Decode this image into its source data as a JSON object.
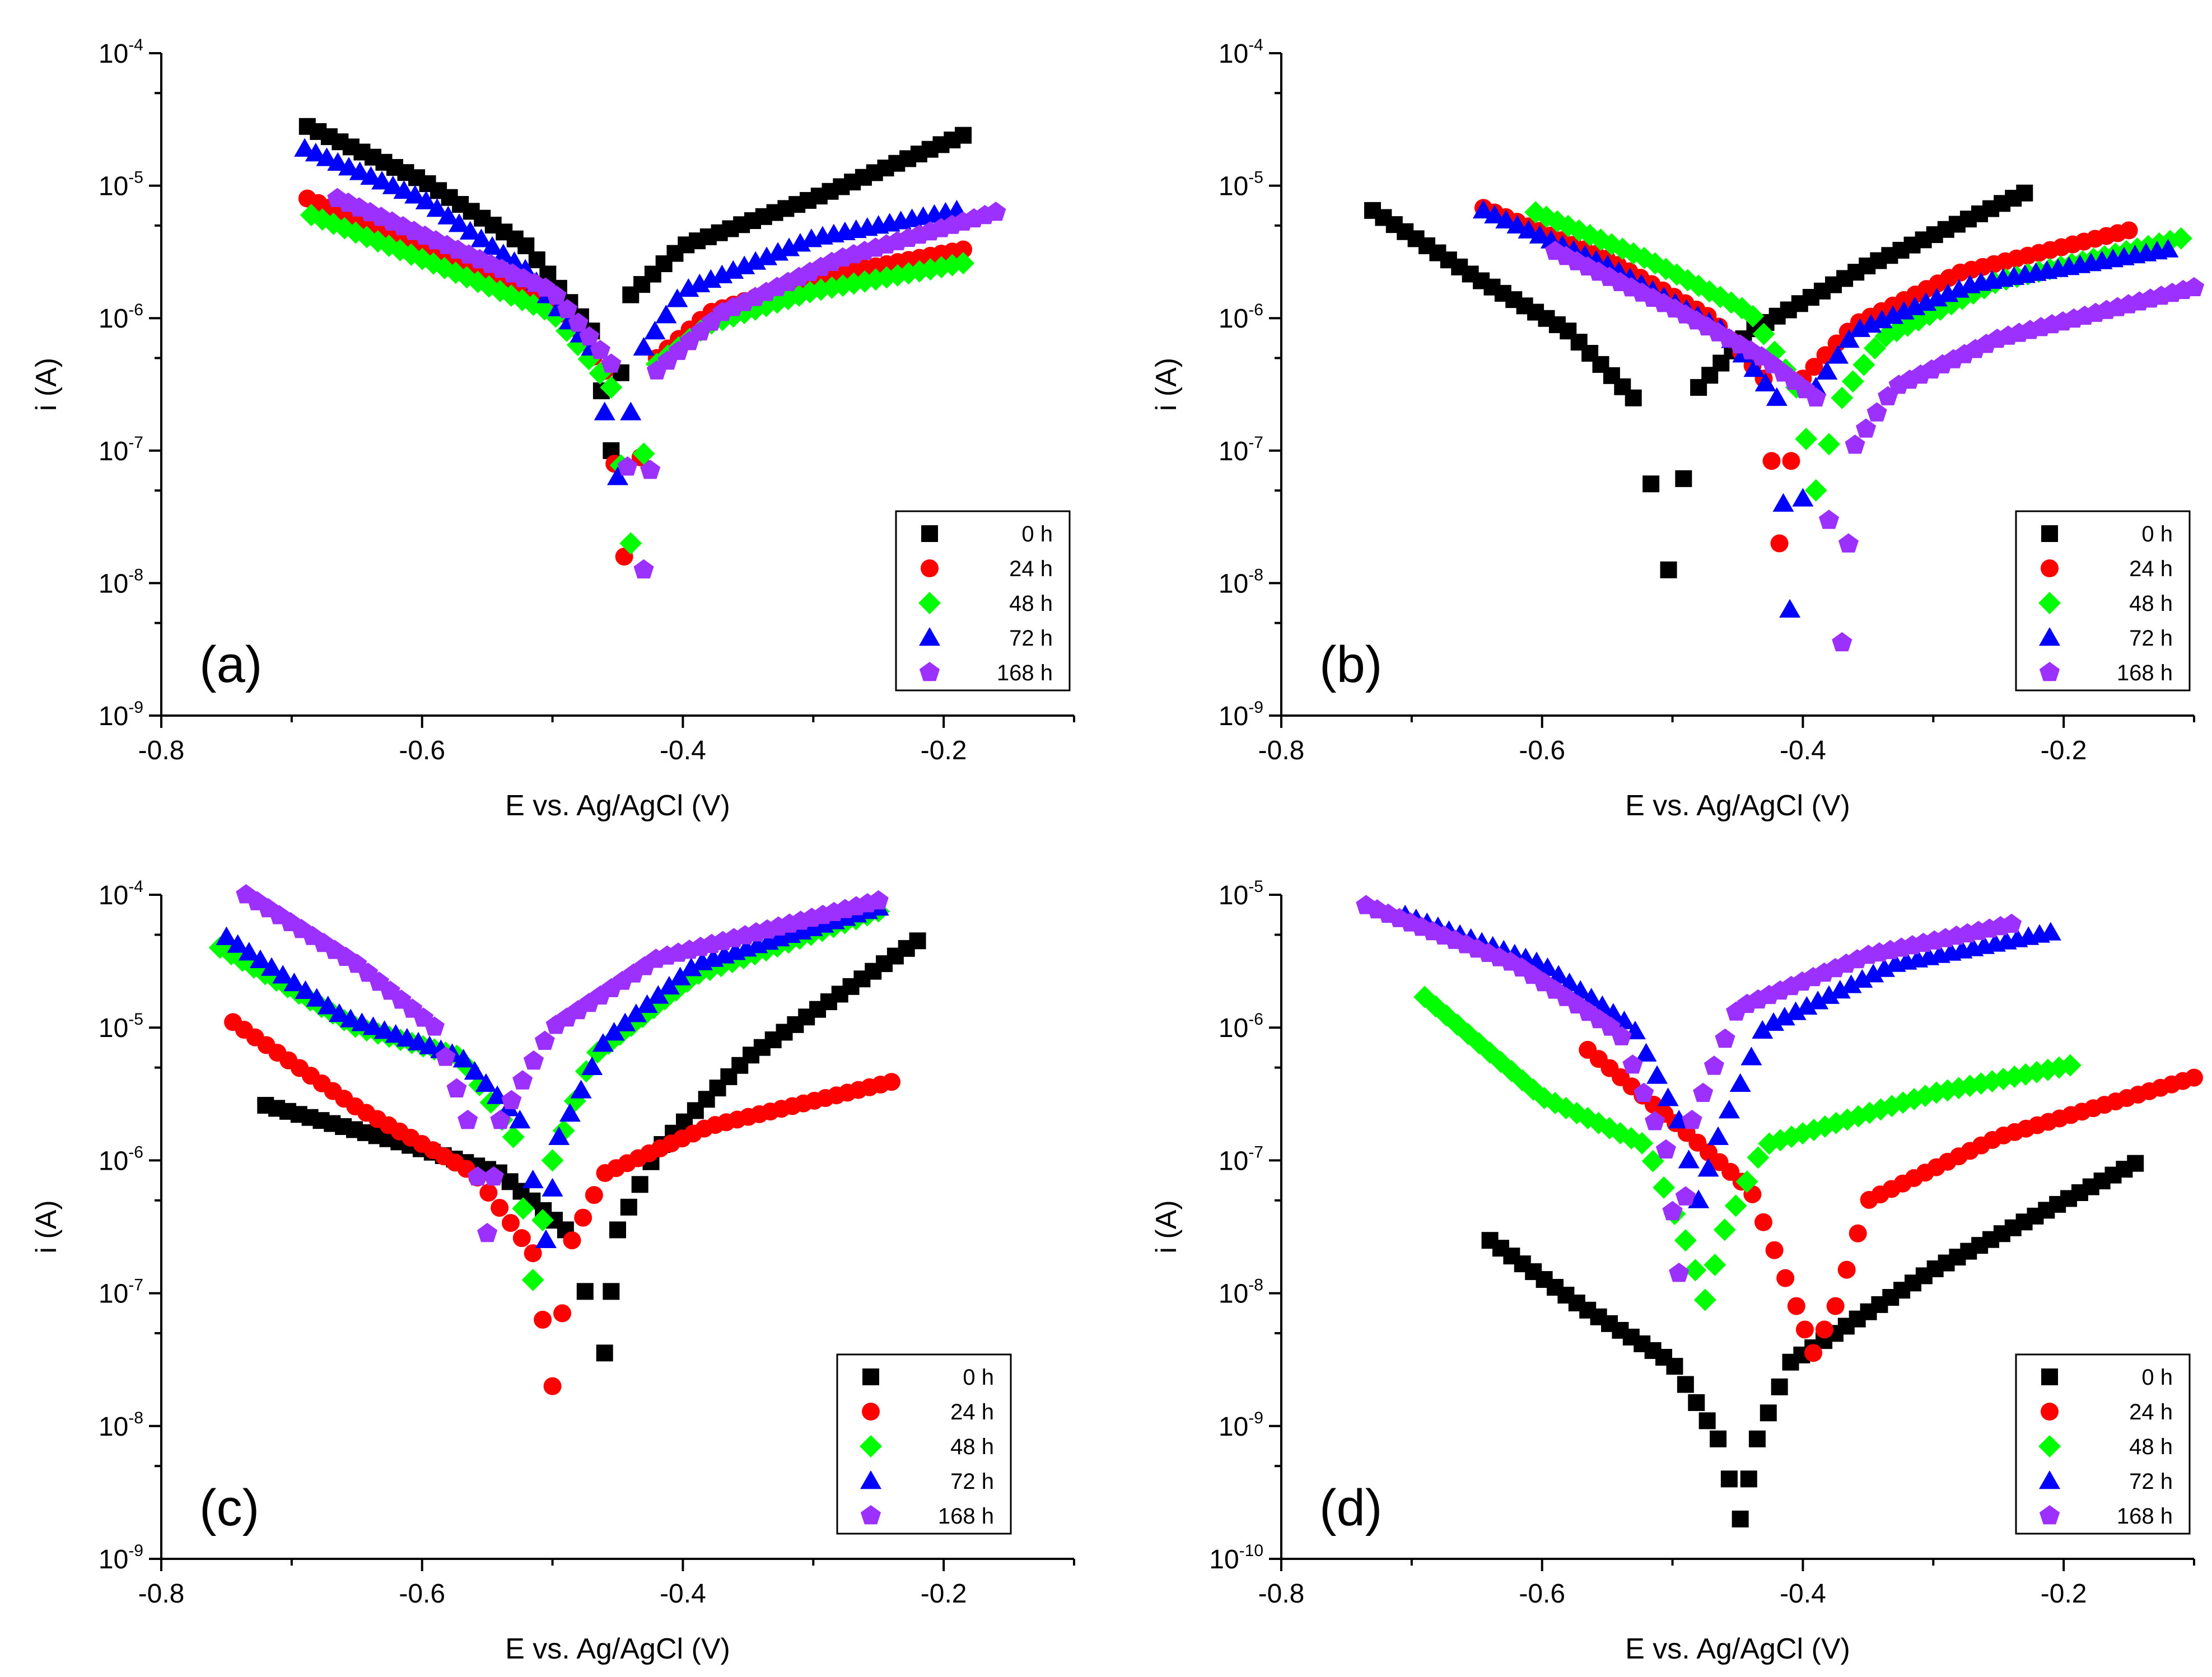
{
  "colors": {
    "0 h": "#000000",
    "24 h": "#ff0000",
    "48 h": "#00ff00",
    "72 h": "#0000ff",
    "168 h": "#9b30ff"
  },
  "chart_data": [
    {
      "type": "scatter",
      "panel_label": "(a)",
      "xlabel": "E vs. Ag/AgCl (V)",
      "ylabel": "i (A)",
      "xscale": "linear",
      "yscale": "log",
      "xlim": [
        -0.8,
        -0.1
      ],
      "ylim_exp": [
        -9,
        -4
      ],
      "xticks": [
        "-0.8",
        "-0.6",
        "-0.4",
        "-0.2"
      ],
      "legend_position": "bottom-right",
      "series": [
        {
          "name": "0 h",
          "marker": "square",
          "ecorr": -0.455,
          "imin_exp": -7.0,
          "left": [
            [
              -0.688,
              2.8e-05
            ],
            [
              -0.6,
              1.1e-05
            ],
            [
              -0.52,
              3.5e-06
            ],
            [
              -0.47,
              8e-07
            ]
          ],
          "right": [
            [
              -0.44,
              1.5e-06
            ],
            [
              -0.4,
              3.5e-06
            ],
            [
              -0.3,
              8e-06
            ],
            [
              -0.185,
              2.4e-05
            ]
          ]
        },
        {
          "name": "24 h",
          "marker": "circle",
          "ecorr": -0.445,
          "imin_exp": -7.8,
          "left": [
            [
              -0.688,
              8e-06
            ],
            [
              -0.6,
              3.5e-06
            ],
            [
              -0.5,
              1.3e-06
            ],
            [
              -0.46,
              4e-07
            ]
          ],
          "right": [
            [
              -0.42,
              5e-07
            ],
            [
              -0.38,
              1.1e-06
            ],
            [
              -0.3,
              2e-06
            ],
            [
              -0.185,
              3.3e-06
            ]
          ]
        },
        {
          "name": "48 h",
          "marker": "diamond",
          "ecorr": -0.44,
          "imin_exp": -7.7,
          "left": [
            [
              -0.685,
              6e-06
            ],
            [
              -0.6,
              2.8e-06
            ],
            [
              -0.5,
              1.1e-06
            ],
            [
              -0.455,
              3e-07
            ]
          ],
          "right": [
            [
              -0.42,
              4.5e-07
            ],
            [
              -0.38,
              9e-07
            ],
            [
              -0.3,
              1.6e-06
            ],
            [
              -0.185,
              2.6e-06
            ]
          ]
        },
        {
          "name": "72 h",
          "marker": "triangle",
          "ecorr": -0.45,
          "imin_exp": -7.2,
          "left": [
            [
              -0.69,
              1.9e-05
            ],
            [
              -0.6,
              8e-06
            ],
            [
              -0.52,
              2.3e-06
            ],
            [
              -0.47,
              6e-07
            ]
          ],
          "right": [
            [
              -0.43,
              6e-07
            ],
            [
              -0.4,
              1.6e-06
            ],
            [
              -0.3,
              4e-06
            ],
            [
              -0.19,
              6.5e-06
            ]
          ]
        },
        {
          "name": "168 h",
          "marker": "pentagon",
          "ecorr": -0.43,
          "imin_exp": -7.9,
          "left": [
            [
              -0.665,
              8e-06
            ],
            [
              -0.58,
              3.5e-06
            ],
            [
              -0.5,
              1.6e-06
            ],
            [
              -0.455,
              4.5e-07
            ]
          ],
          "right": [
            [
              -0.42,
              4e-07
            ],
            [
              -0.37,
              1.1e-06
            ],
            [
              -0.28,
              2.8e-06
            ],
            [
              -0.16,
              6.3e-06
            ]
          ]
        }
      ]
    },
    {
      "type": "scatter",
      "panel_label": "(b)",
      "xlabel": "E vs. Ag/AgCl (V)",
      "ylabel": "i (A)",
      "xscale": "linear",
      "yscale": "log",
      "xlim": [
        -0.8,
        -0.1
      ],
      "ylim_exp": [
        -9,
        -4
      ],
      "xticks": [
        "-0.8",
        "-0.6",
        "-0.4",
        "-0.2"
      ],
      "legend_position": "bottom-right",
      "series": [
        {
          "name": "0 h",
          "marker": "square",
          "ecorr": -0.503,
          "imin_exp": -7.9,
          "left": [
            [
              -0.73,
              6.5e-06
            ],
            [
              -0.65,
              2e-06
            ],
            [
              -0.58,
              8e-07
            ],
            [
              -0.53,
              2.5e-07
            ]
          ],
          "right": [
            [
              -0.48,
              3e-07
            ],
            [
              -0.44,
              8e-07
            ],
            [
              -0.35,
              2.5e-06
            ],
            [
              -0.23,
              8.8e-06
            ]
          ]
        },
        {
          "name": "24 h",
          "marker": "circle",
          "ecorr": -0.418,
          "imin_exp": -7.7,
          "left": [
            [
              -0.645,
              6.8e-06
            ],
            [
              -0.55,
              2.8e-06
            ],
            [
              -0.47,
              1e-06
            ],
            [
              -0.43,
              3.5e-07
            ]
          ],
          "right": [
            [
              -0.4,
              3.5e-07
            ],
            [
              -0.36,
              9e-07
            ],
            [
              -0.28,
              2.2e-06
            ],
            [
              -0.15,
              4.6e-06
            ]
          ]
        },
        {
          "name": "48 h",
          "marker": "diamond",
          "ecorr": -0.39,
          "imin_exp": -7.3,
          "left": [
            [
              -0.605,
              6.3e-06
            ],
            [
              -0.52,
              2.8e-06
            ],
            [
              -0.44,
              1.1e-06
            ],
            [
              -0.405,
              3e-07
            ]
          ],
          "right": [
            [
              -0.37,
              2.5e-07
            ],
            [
              -0.34,
              7e-07
            ],
            [
              -0.25,
              1.9e-06
            ],
            [
              -0.11,
              4e-06
            ]
          ]
        },
        {
          "name": "72 h",
          "marker": "triangle",
          "ecorr": -0.41,
          "imin_exp": -8.2,
          "left": [
            [
              -0.645,
              6.5e-06
            ],
            [
              -0.55,
              2.5e-06
            ],
            [
              -0.46,
              8e-07
            ],
            [
              -0.42,
              2.5e-07
            ]
          ],
          "right": [
            [
              -0.39,
              3e-07
            ],
            [
              -0.36,
              8e-07
            ],
            [
              -0.27,
              1.8e-06
            ],
            [
              -0.12,
              3.3e-06
            ]
          ]
        },
        {
          "name": "168 h",
          "marker": "pentagon",
          "ecorr": -0.37,
          "imin_exp": -8.45,
          "left": [
            [
              -0.59,
              3.2e-06
            ],
            [
              -0.5,
              1.2e-06
            ],
            [
              -0.43,
              5e-07
            ],
            [
              -0.39,
              2.5e-07
            ]
          ],
          "right": [
            [
              -0.36,
              1.1e-07
            ],
            [
              -0.33,
              3e-07
            ],
            [
              -0.25,
              7e-07
            ],
            [
              -0.1,
              1.7e-06
            ]
          ]
        }
      ]
    },
    {
      "type": "scatter",
      "panel_label": "(c)",
      "xlabel": "E vs. Ag/AgCl (V)",
      "ylabel": "i (A)",
      "xscale": "linear",
      "yscale": "log",
      "xlim": [
        -0.8,
        -0.1
      ],
      "ylim_exp": [
        -9,
        -4
      ],
      "xticks": [
        "-0.8",
        "-0.6",
        "-0.4",
        "-0.2"
      ],
      "legend_position": "bottom-right",
      "series": [
        {
          "name": "0 h",
          "marker": "square",
          "ecorr": -0.46,
          "imin_exp": -7.45,
          "left": [
            [
              -0.72,
              2.6e-06
            ],
            [
              -0.62,
              1.4e-06
            ],
            [
              -0.54,
              8e-07
            ],
            [
              -0.49,
              3e-07
            ]
          ],
          "right": [
            [
              -0.45,
              3e-07
            ],
            [
              -0.42,
              1.2e-06
            ],
            [
              -0.35,
              6e-06
            ],
            [
              -0.22,
              4.5e-05
            ]
          ]
        },
        {
          "name": "24 h",
          "marker": "circle",
          "ecorr": -0.5,
          "imin_exp": -7.7,
          "left": [
            [
              -0.745,
              1.1e-05
            ],
            [
              -0.65,
              2.5e-06
            ],
            [
              -0.56,
              8e-07
            ],
            [
              -0.515,
              2e-07
            ]
          ],
          "right": [
            [
              -0.485,
              2.5e-07
            ],
            [
              -0.46,
              8e-07
            ],
            [
              -0.38,
              1.8e-06
            ],
            [
              -0.24,
              3.9e-06
            ]
          ]
        },
        {
          "name": "48 h",
          "marker": "diamond",
          "ecorr": -0.515,
          "imin_exp": -6.9,
          "left": [
            [
              -0.755,
              4e-05
            ],
            [
              -0.65,
              1e-05
            ],
            [
              -0.57,
              6e-06
            ],
            [
              -0.53,
              1.5e-06
            ]
          ],
          "right": [
            [
              -0.5,
              1e-06
            ],
            [
              -0.47,
              6e-06
            ],
            [
              -0.39,
              2.5e-05
            ],
            [
              -0.25,
              7.5e-05
            ]
          ]
        },
        {
          "name": "72 h",
          "marker": "triangle",
          "ecorr": -0.505,
          "imin_exp": -6.6,
          "left": [
            [
              -0.75,
              4.8e-05
            ],
            [
              -0.66,
              1.2e-05
            ],
            [
              -0.57,
              6e-06
            ],
            [
              -0.525,
              2e-06
            ]
          ],
          "right": [
            [
              -0.495,
              1.5e-06
            ],
            [
              -0.46,
              8e-06
            ],
            [
              -0.39,
              3e-05
            ],
            [
              -0.25,
              8e-05
            ]
          ]
        },
        {
          "name": "168 h",
          "marker": "pentagon",
          "ecorr": -0.55,
          "imin_exp": -6.55,
          "left": [
            [
              -0.735,
              0.0001
            ],
            [
              -0.65,
              3e-05
            ],
            [
              -0.59,
              1e-05
            ],
            [
              -0.565,
              2e-06
            ]
          ],
          "right": [
            [
              -0.54,
              2e-06
            ],
            [
              -0.5,
              1e-05
            ],
            [
              -0.42,
              3.3e-05
            ],
            [
              -0.25,
              9e-05
            ]
          ]
        }
      ]
    },
    {
      "type": "scatter",
      "panel_label": "(d)",
      "xlabel": "E vs. Ag/AgCl (V)",
      "ylabel": "i (A)",
      "xscale": "linear",
      "yscale": "log",
      "xlim": [
        -0.8,
        -0.1
      ],
      "ylim_exp": [
        -10,
        -5
      ],
      "xticks": [
        "-0.8",
        "-0.6",
        "-0.4",
        "-0.2"
      ],
      "legend_position": "bottom-right",
      "series": [
        {
          "name": "0 h",
          "marker": "square",
          "ecorr": -0.448,
          "imin_exp": -9.7,
          "left": [
            [
              -0.64,
              2.5e-08
            ],
            [
              -0.57,
              8e-09
            ],
            [
              -0.5,
              3e-09
            ],
            [
              -0.465,
              8e-10
            ]
          ],
          "right": [
            [
              -0.435,
              8e-10
            ],
            [
              -0.41,
              3e-09
            ],
            [
              -0.3,
              1.5e-08
            ],
            [
              -0.145,
              9.5e-08
            ]
          ]
        },
        {
          "name": "24 h",
          "marker": "circle",
          "ecorr": -0.392,
          "imin_exp": -8.45,
          "left": [
            [
              -0.565,
              6.8e-07
            ],
            [
              -0.5,
              2e-07
            ],
            [
              -0.44,
              6e-08
            ],
            [
              -0.405,
              8e-09
            ]
          ],
          "right": [
            [
              -0.375,
              8e-09
            ],
            [
              -0.35,
              5e-08
            ],
            [
              -0.25,
              1.5e-07
            ],
            [
              -0.1,
              4.2e-07
            ]
          ]
        },
        {
          "name": "48 h",
          "marker": "diamond",
          "ecorr": -0.475,
          "imin_exp": -8.05,
          "left": [
            [
              -0.69,
              1.7e-06
            ],
            [
              -0.6,
              3e-07
            ],
            [
              -0.52,
              1.3e-07
            ],
            [
              -0.49,
              2.5e-08
            ]
          ],
          "right": [
            [
              -0.46,
              3e-08
            ],
            [
              -0.43,
              1.3e-07
            ],
            [
              -0.3,
              3.2e-07
            ],
            [
              -0.195,
              5.2e-07
            ]
          ]
        },
        {
          "name": "72 h",
          "marker": "triangle",
          "ecorr": -0.48,
          "imin_exp": -7.3,
          "left": [
            [
              -0.705,
              7e-06
            ],
            [
              -0.6,
              3e-06
            ],
            [
              -0.53,
              1e-06
            ],
            [
              -0.495,
              2e-07
            ]
          ],
          "right": [
            [
              -0.465,
              1.5e-07
            ],
            [
              -0.43,
              1e-06
            ],
            [
              -0.33,
              3e-06
            ],
            [
              -0.21,
              5.2e-06
            ]
          ]
        },
        {
          "name": "168 h",
          "marker": "pentagon",
          "ecorr": -0.495,
          "imin_exp": -7.85,
          "left": [
            [
              -0.735,
              8.3e-06
            ],
            [
              -0.62,
              3e-06
            ],
            [
              -0.54,
              9e-07
            ],
            [
              -0.505,
              1.2e-07
            ]
          ],
          "right": [
            [
              -0.485,
              2e-07
            ],
            [
              -0.45,
              1.4e-06
            ],
            [
              -0.35,
              3.5e-06
            ],
            [
              -0.24,
              6e-06
            ]
          ]
        }
      ]
    }
  ]
}
